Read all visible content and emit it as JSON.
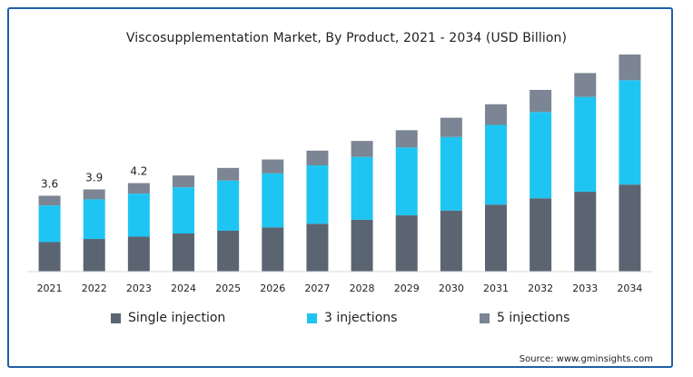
{
  "chart_data": {
    "type": "bar",
    "stacked": true,
    "title": "Viscosupplementation Market, By Product, 2021 - 2034 (USD Billion)",
    "xlabel": "",
    "ylabel": "",
    "categories": [
      "2021",
      "2022",
      "2023",
      "2024",
      "2025",
      "2026",
      "2027",
      "2028",
      "2029",
      "2030",
      "2031",
      "2032",
      "2033",
      "2034"
    ],
    "series": [
      {
        "name": "Single injection",
        "color": "#5b6572",
        "values": [
          1.4,
          1.55,
          1.66,
          1.81,
          1.94,
          2.1,
          2.27,
          2.46,
          2.67,
          2.9,
          3.18,
          3.48,
          3.79,
          4.13
        ]
      },
      {
        "name": "3 injections",
        "color": "#1ec5f2",
        "values": [
          1.74,
          1.88,
          2.04,
          2.19,
          2.38,
          2.56,
          2.77,
          2.98,
          3.22,
          3.49,
          3.78,
          4.09,
          4.5,
          4.95
        ]
      },
      {
        "name": "5 injections",
        "color": "#7b8593",
        "values": [
          0.46,
          0.47,
          0.5,
          0.56,
          0.6,
          0.66,
          0.7,
          0.76,
          0.82,
          0.91,
          0.98,
          1.05,
          1.13,
          1.22
        ]
      }
    ],
    "data_labels": [
      {
        "category": "2021",
        "text": "3.6"
      },
      {
        "category": "2022",
        "text": "3.9"
      },
      {
        "category": "2023",
        "text": "4.2"
      }
    ],
    "ylim": [
      0,
      10.3
    ],
    "grid": false,
    "legend_position": "bottom"
  },
  "source_text": "Source: www.gminsights.com"
}
